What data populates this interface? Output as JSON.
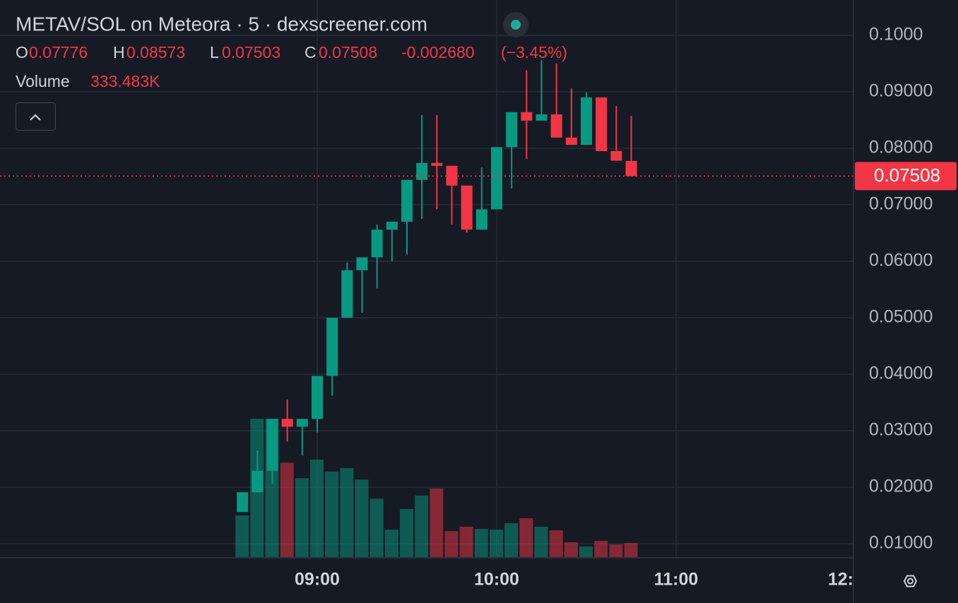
{
  "chart_data": {
    "type": "candlestick",
    "title": "METAV/SOL on Meteora · 5 · dexscreener.com",
    "ohlc_labels": [
      "O",
      "H",
      "L",
      "C"
    ],
    "change": "-0.002680",
    "change_pct": "(−3.45%)",
    "volume_title": "Volume",
    "last_volume_label": "333.483K",
    "x": [
      "08:35",
      "08:40",
      "08:45",
      "08:50",
      "08:55",
      "09:00",
      "09:05",
      "09:10",
      "09:15",
      "09:20",
      "09:25",
      "09:30",
      "09:35",
      "09:40",
      "09:45",
      "09:50",
      "09:55",
      "10:00",
      "10:05",
      "10:10",
      "10:15",
      "10:20",
      "10:25",
      "10:30",
      "10:35",
      "10:40",
      "10:45"
    ],
    "open": [
      0.0156,
      0.0191,
      0.0229,
      0.0321,
      0.0307,
      0.0321,
      0.0397,
      0.05,
      0.0584,
      0.0607,
      0.0656,
      0.067,
      0.0744,
      0.0774,
      0.0769,
      0.0734,
      0.0656,
      0.0692,
      0.0802,
      0.0864,
      0.0849,
      0.086,
      0.0819,
      0.0806,
      0.089,
      0.0795,
      0.07776
    ],
    "high": [
      0.0191,
      0.0265,
      0.0321,
      0.0355,
      0.0321,
      0.0397,
      0.05,
      0.0598,
      0.0607,
      0.0665,
      0.067,
      0.0744,
      0.0859,
      0.0859,
      0.0769,
      0.0734,
      0.0766,
      0.0802,
      0.0864,
      0.0938,
      0.0956,
      0.095,
      0.0906,
      0.0899,
      0.089,
      0.0875,
      0.08573
    ],
    "low": [
      0.0156,
      0.0191,
      0.0206,
      0.0281,
      0.0256,
      0.0297,
      0.0362,
      0.0506,
      0.0509,
      0.0552,
      0.06,
      0.0612,
      0.0675,
      0.0692,
      0.0665,
      0.0651,
      0.0656,
      0.0692,
      0.0729,
      0.0781,
      0.0849,
      0.0819,
      0.0806,
      0.0806,
      0.0795,
      0.0778,
      0.07503
    ],
    "close": [
      0.0191,
      0.0229,
      0.0321,
      0.0307,
      0.0321,
      0.0397,
      0.05,
      0.0584,
      0.0607,
      0.0656,
      0.067,
      0.0744,
      0.0774,
      0.0769,
      0.0734,
      0.0656,
      0.0692,
      0.0802,
      0.0864,
      0.0849,
      0.086,
      0.0819,
      0.0806,
      0.089,
      0.0795,
      0.0778,
      0.07508
    ],
    "volume": [
      953000,
      3130000,
      3130000,
      2140000,
      1790000,
      2210000,
      1940000,
      2020000,
      1760000,
      1330000,
      635000,
      1100000,
      1400000,
      1560000,
      603000,
      699000,
      651000,
      635000,
      778000,
      889000,
      699000,
      619000,
      349000,
      254000,
      381000,
      302000,
      333483
    ],
    "up_color": "#089981",
    "down_color": "#f23645",
    "ylim": [
      0.0075,
      0.10625
    ],
    "yticks": [
      {
        "value": 0.01,
        "label": "0.01000"
      },
      {
        "value": 0.02,
        "label": "0.02000"
      },
      {
        "value": 0.03,
        "label": "0.03000"
      },
      {
        "value": 0.04,
        "label": "0.04000"
      },
      {
        "value": 0.05,
        "label": "0.05000"
      },
      {
        "value": 0.06,
        "label": "0.06000"
      },
      {
        "value": 0.07,
        "label": "0.07000"
      },
      {
        "value": 0.08,
        "label": "0.08000"
      },
      {
        "value": 0.09,
        "label": "0.09000"
      },
      {
        "value": 0.1,
        "label": "0.1000"
      }
    ],
    "xticks": [
      "09:00",
      "10:00",
      "11:00",
      {
        "value": "12:00",
        "label": "12:"
      }
    ],
    "grid": true
  }
}
